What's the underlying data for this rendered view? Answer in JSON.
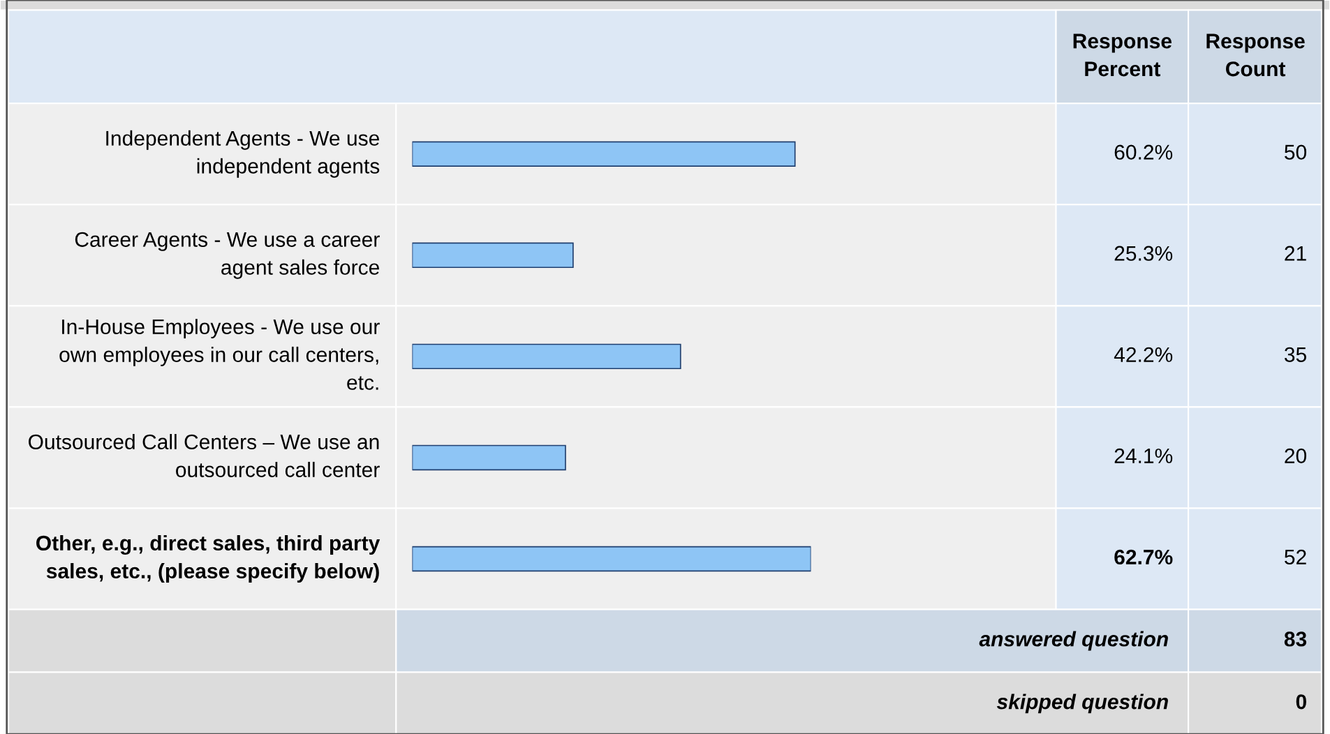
{
  "chart_data": {
    "type": "bar",
    "orientation": "horizontal",
    "categories": [
      "Independent Agents - We use independent agents",
      "Career Agents - We use a career agent sales force",
      "In-House Employees - We use our own employees in our call centers, etc.",
      "Outsourced Call Centers – We use an outsourced call center",
      "Other, e.g., direct sales, third party sales, etc., (please specify below)"
    ],
    "values": [
      60.2,
      25.3,
      42.2,
      24.1,
      62.7
    ],
    "value_labels": [
      "60.2%",
      "25.3%",
      "42.2%",
      "24.1%",
      "62.7%"
    ],
    "color": "#8ec5f5",
    "tick_labels": false,
    "annotations": [
      "Response Percent",
      "Response Count",
      "50",
      "21",
      "35",
      "20",
      "52",
      "answered question",
      "83",
      "skipped question",
      "0"
    ]
  }
}
